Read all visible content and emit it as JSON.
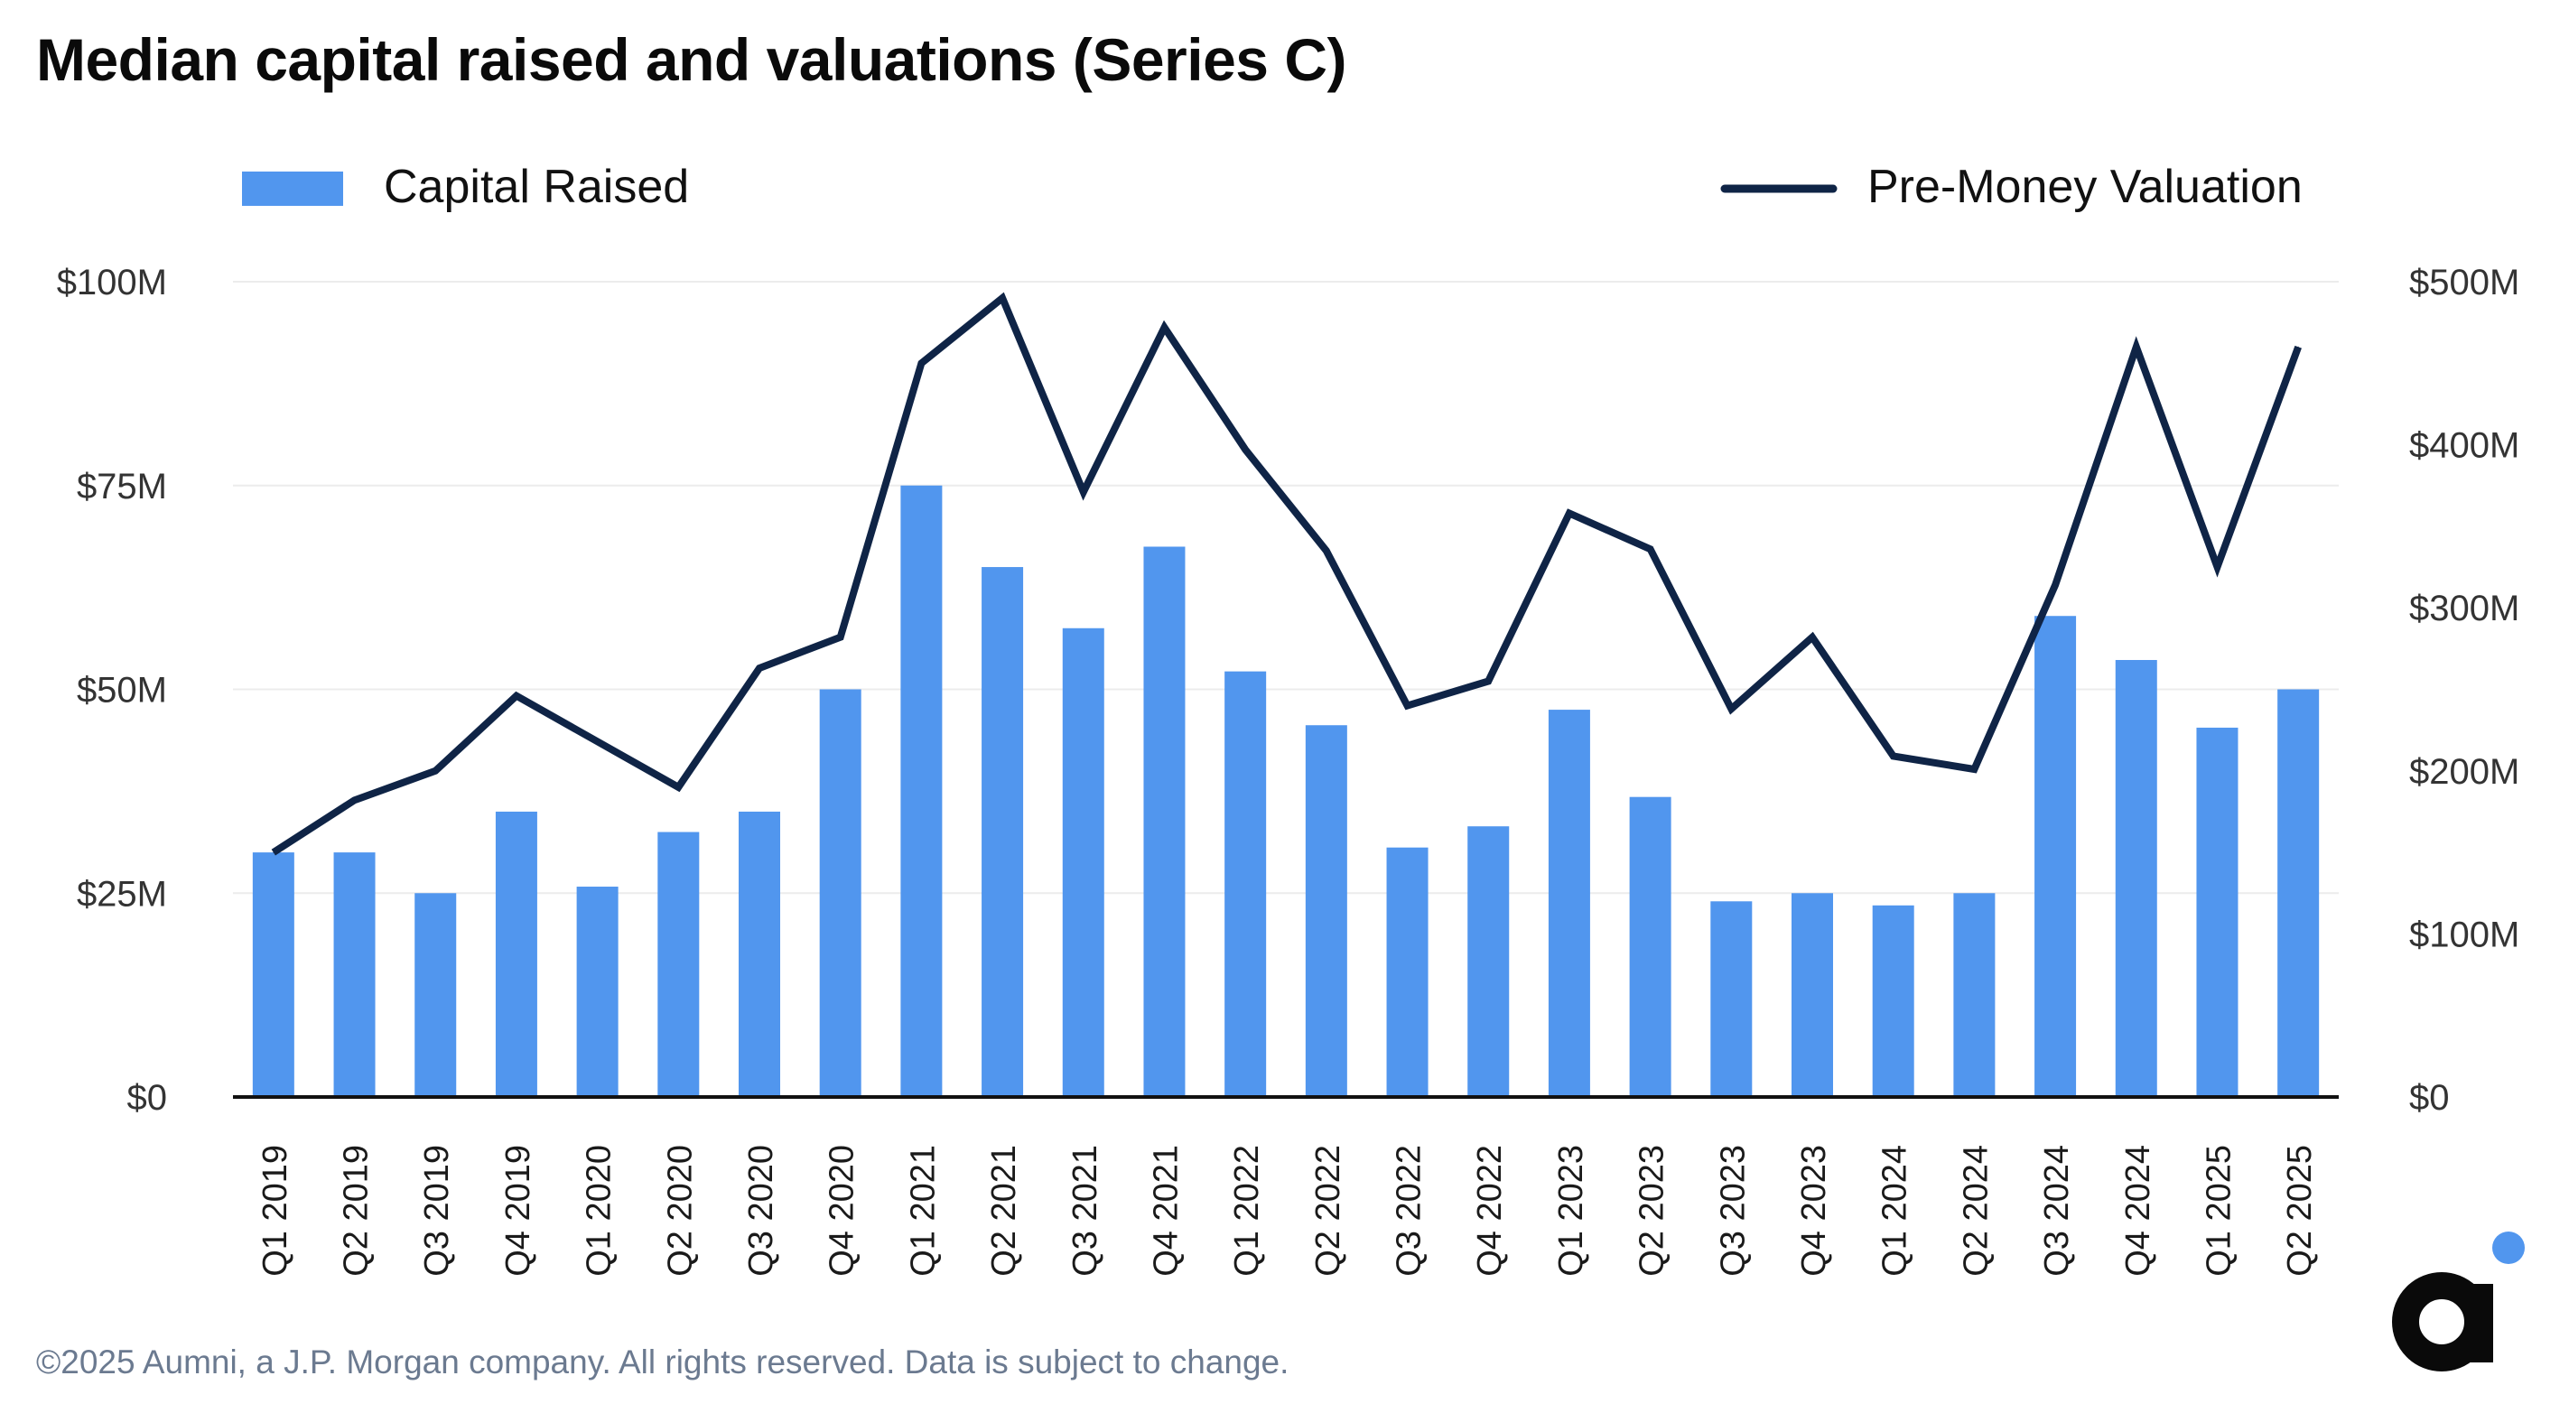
{
  "chart_data": {
    "type": "bar",
    "title": "Median capital raised and valuations (Series C)",
    "categories": [
      "Q1 2019",
      "Q2 2019",
      "Q3 2019",
      "Q4 2019",
      "Q1 2020",
      "Q2 2020",
      "Q3 2020",
      "Q4 2020",
      "Q1 2021",
      "Q2 2021",
      "Q3 2021",
      "Q4 2021",
      "Q1 2022",
      "Q2 2022",
      "Q3 2022",
      "Q4 2022",
      "Q1 2023",
      "Q2 2023",
      "Q3 2023",
      "Q4 2023",
      "Q1 2024",
      "Q2 2024",
      "Q3 2024",
      "Q4 2024",
      "Q1 2025",
      "Q2 2025"
    ],
    "series": [
      {
        "name": "Capital Raised",
        "type": "bar",
        "axis": "left",
        "color": "#5196ee",
        "values": [
          30,
          30,
          25,
          35,
          25.8,
          32.5,
          35,
          50,
          75,
          65,
          57.5,
          67.5,
          52.2,
          45.6,
          30.6,
          33.2,
          47.5,
          36.8,
          24,
          25,
          23.5,
          25,
          59,
          53.6,
          45.3,
          50
        ]
      },
      {
        "name": "Pre-Money Valuation",
        "type": "line",
        "axis": "right",
        "color": "#0f2446",
        "values": [
          150,
          182,
          200,
          246,
          218,
          190,
          263,
          282,
          450,
          490,
          371,
          472,
          397,
          335,
          240,
          255,
          358,
          336,
          238,
          282,
          209,
          201,
          314,
          460,
          325,
          460
        ]
      }
    ],
    "y_left": {
      "min": 0,
      "max": 100,
      "ticks": [
        "$0",
        "$25M",
        "$50M",
        "$75M",
        "$100M"
      ],
      "tick_values": [
        0,
        25,
        50,
        75,
        100
      ]
    },
    "y_right": {
      "min": 0,
      "max": 500,
      "ticks": [
        "$0",
        "$100M",
        "$200M",
        "$300M",
        "$400M",
        "$500M"
      ],
      "tick_values": [
        0,
        100,
        200,
        300,
        400,
        500
      ]
    },
    "grid": true,
    "legend": {
      "left_label": "Capital Raised",
      "right_label": "Pre-Money Valuation",
      "placement": "top"
    }
  },
  "footer": "©2025 Aumni, a J.P. Morgan company. All rights reserved. Data is subject to change.",
  "colors": {
    "bar": "#5196ee",
    "line": "#0f2446",
    "grid": "#ececec",
    "axis": "#111111",
    "tick_text": "#333333",
    "footer_text": "#6b7a90",
    "logo_dark": "#0a0a0a",
    "logo_accent": "#5196ee"
  },
  "icons": {
    "brand_logo": "aumni-logo-icon"
  }
}
